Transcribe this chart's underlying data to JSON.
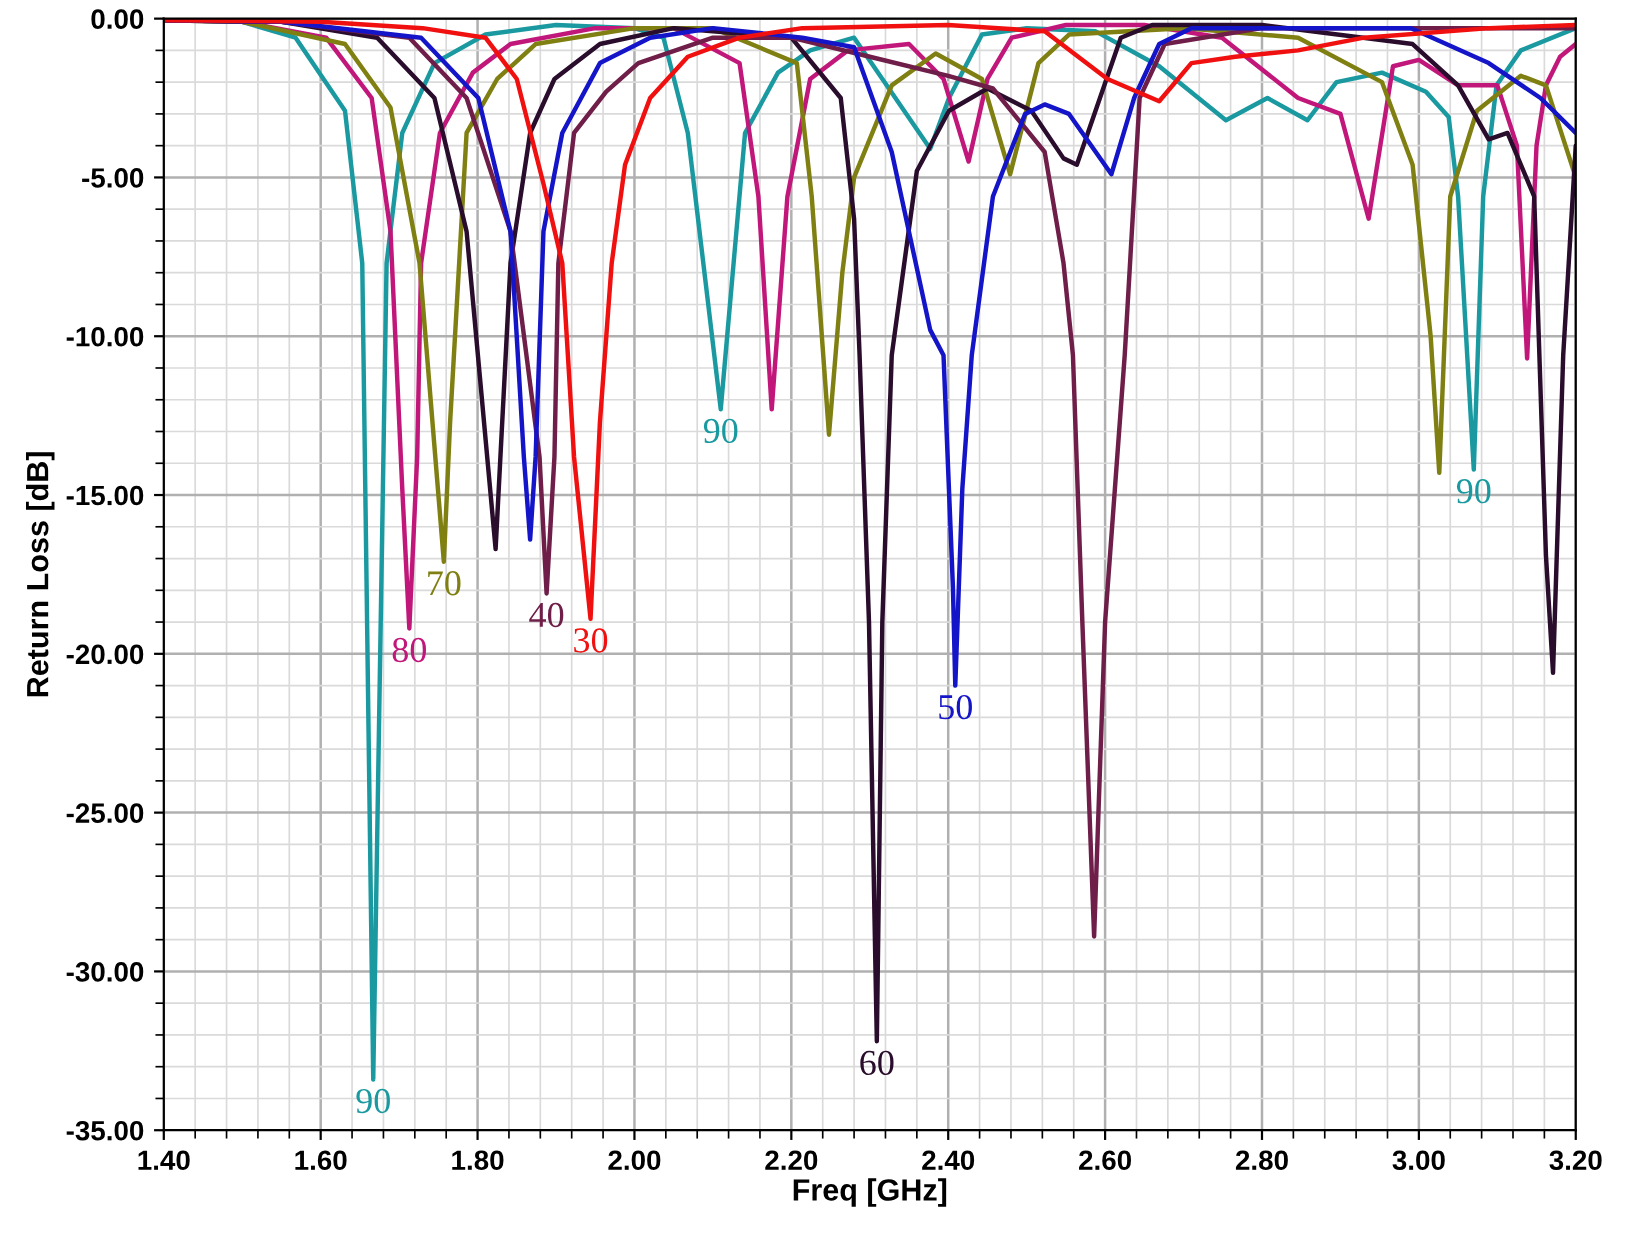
{
  "chart_data": {
    "type": "line",
    "xlabel": "Freq [GHz]",
    "ylabel": "Return Loss [dB]",
    "xlim": [
      1.4,
      3.2
    ],
    "ylim": [
      -35,
      0
    ],
    "xticks": [
      {
        "value": 1.4,
        "label": "1.40"
      },
      {
        "value": 1.6,
        "label": "1.60"
      },
      {
        "value": 1.8,
        "label": "1.80"
      },
      {
        "value": 2.0,
        "label": "2.00"
      },
      {
        "value": 2.2,
        "label": "2.20"
      },
      {
        "value": 2.4,
        "label": "2.40"
      },
      {
        "value": 2.6,
        "label": "2.60"
      },
      {
        "value": 2.8,
        "label": "2.80"
      },
      {
        "value": 3.0,
        "label": "3.00"
      },
      {
        "value": 3.2,
        "label": "3.20"
      }
    ],
    "yticks": [
      {
        "value": 0,
        "label": "0.00"
      },
      {
        "value": -5,
        "label": "-5.00"
      },
      {
        "value": -10,
        "label": "-10.00"
      },
      {
        "value": -15,
        "label": "-15.00"
      },
      {
        "value": -20,
        "label": "-20.00"
      },
      {
        "value": -25,
        "label": "-25.00"
      },
      {
        "value": -30,
        "label": "-30.00"
      },
      {
        "value": -35,
        "label": "-35.00"
      }
    ],
    "grid": true,
    "legend": false,
    "marker": "none",
    "line_style": "solid",
    "series": [
      {
        "color": "#1a9aa0",
        "x": [
          1.4,
          1.5,
          1.568,
          1.631,
          1.653,
          1.667,
          1.684,
          1.704,
          1.745,
          1.81,
          1.9,
          2.0,
          2.037,
          2.068,
          2.11,
          2.141,
          2.183,
          2.224,
          2.28,
          2.377,
          2.401,
          2.443,
          2.5,
          2.588,
          2.669,
          2.754,
          2.807,
          2.858,
          2.895,
          2.953,
          3.009,
          3.038,
          3.05,
          3.07,
          3.082,
          3.099,
          3.13,
          3.2
        ],
        "values": [
          -0.05,
          -0.1,
          -0.6,
          -2.9,
          -7.7,
          -33.4,
          -7.7,
          -3.6,
          -1.4,
          -0.5,
          -0.2,
          -0.3,
          -0.6,
          -3.6,
          -12.3,
          -3.6,
          -1.7,
          -1.0,
          -0.6,
          -4.1,
          -2.5,
          -0.5,
          -0.3,
          -0.4,
          -1.5,
          -3.2,
          -2.5,
          -3.2,
          -2.0,
          -1.7,
          -2.3,
          -3.1,
          -5.6,
          -14.2,
          -5.6,
          -2.1,
          -1.0,
          -0.3
        ]
      },
      {
        "color": "#c2177a",
        "x": [
          1.4,
          1.5,
          1.607,
          1.665,
          1.689,
          1.704,
          1.713,
          1.723,
          1.728,
          1.752,
          1.794,
          1.842,
          1.95,
          2.05,
          2.134,
          2.158,
          2.175,
          2.195,
          2.224,
          2.272,
          2.35,
          2.394,
          2.426,
          2.45,
          2.481,
          2.55,
          2.65,
          2.749,
          2.846,
          2.9,
          2.936,
          2.967,
          3.0,
          3.05,
          3.1,
          3.125,
          3.138,
          3.15,
          3.162,
          3.18,
          3.2
        ],
        "values": [
          -0.05,
          -0.1,
          -0.6,
          -2.5,
          -6.7,
          -14.8,
          -19.2,
          -13.8,
          -7.7,
          -3.6,
          -1.7,
          -0.8,
          -0.3,
          -0.3,
          -1.4,
          -5.6,
          -12.3,
          -5.6,
          -1.9,
          -1.0,
          -0.8,
          -1.9,
          -4.5,
          -1.9,
          -0.6,
          -0.2,
          -0.2,
          -0.6,
          -2.5,
          -3.0,
          -6.3,
          -1.5,
          -1.3,
          -2.1,
          -2.1,
          -4.0,
          -10.7,
          -4.0,
          -2.1,
          -1.2,
          -0.8
        ]
      },
      {
        "color": "#7f7f12",
        "x": [
          1.4,
          1.5,
          1.631,
          1.689,
          1.726,
          1.757,
          1.765,
          1.786,
          1.825,
          1.874,
          2.0,
          2.1,
          2.207,
          2.226,
          2.248,
          2.265,
          2.28,
          2.328,
          2.384,
          2.443,
          2.479,
          2.515,
          2.554,
          2.7,
          2.846,
          2.953,
          2.992,
          3.015,
          3.026,
          3.04,
          3.074,
          3.13,
          3.162,
          3.2
        ],
        "values": [
          -0.05,
          -0.1,
          -0.8,
          -2.8,
          -7.7,
          -17.1,
          -12.7,
          -3.6,
          -1.9,
          -0.8,
          -0.3,
          -0.3,
          -1.4,
          -5.6,
          -13.1,
          -8.0,
          -5.0,
          -2.1,
          -1.1,
          -1.9,
          -4.9,
          -1.4,
          -0.5,
          -0.3,
          -0.6,
          -2.0,
          -4.6,
          -10.0,
          -14.3,
          -5.6,
          -2.9,
          -1.8,
          -2.1,
          -5.0
        ]
      },
      {
        "color": "#2a0c2c",
        "x": [
          1.4,
          1.55,
          1.672,
          1.745,
          1.786,
          1.823,
          1.842,
          1.867,
          1.898,
          1.956,
          2.05,
          2.2,
          2.263,
          2.28,
          2.287,
          2.299,
          2.309,
          2.316,
          2.328,
          2.36,
          2.401,
          2.45,
          2.506,
          2.547,
          2.564,
          2.62,
          2.66,
          2.8,
          2.992,
          3.05,
          3.089,
          3.113,
          3.147,
          3.162,
          3.171,
          3.184,
          3.2
        ],
        "values": [
          -0.05,
          -0.1,
          -0.6,
          -2.5,
          -6.7,
          -16.7,
          -7.7,
          -3.6,
          -1.9,
          -0.8,
          -0.3,
          -0.6,
          -2.5,
          -6.3,
          -10.6,
          -19.0,
          -32.2,
          -19.0,
          -10.6,
          -4.8,
          -2.9,
          -2.2,
          -2.9,
          -4.4,
          -4.6,
          -0.6,
          -0.2,
          -0.2,
          -0.8,
          -2.1,
          -3.8,
          -3.6,
          -5.6,
          -16.9,
          -20.6,
          -10.6,
          -4.0
        ]
      },
      {
        "color": "#6e1e48",
        "x": [
          1.4,
          1.55,
          1.713,
          1.786,
          1.842,
          1.879,
          1.888,
          1.898,
          1.903,
          1.923,
          1.964,
          2.005,
          2.1,
          2.2,
          2.3,
          2.4,
          2.457,
          2.523,
          2.547,
          2.559,
          2.571,
          2.586,
          2.6,
          2.625,
          2.644,
          2.676,
          2.8,
          3.0,
          3.2
        ],
        "values": [
          -0.05,
          -0.1,
          -0.6,
          -2.5,
          -6.7,
          -13.8,
          -18.1,
          -13.8,
          -7.7,
          -3.6,
          -2.3,
          -1.4,
          -0.6,
          -0.6,
          -1.2,
          -1.8,
          -2.2,
          -4.2,
          -7.7,
          -10.6,
          -19.0,
          -28.9,
          -19.0,
          -10.6,
          -2.5,
          -0.8,
          -0.3,
          -0.3,
          -0.3
        ]
      },
      {
        "color": "#1414c8",
        "x": [
          1.4,
          1.55,
          1.728,
          1.801,
          1.842,
          1.859,
          1.867,
          1.874,
          1.884,
          1.908,
          1.956,
          2.02,
          2.1,
          2.214,
          2.28,
          2.328,
          2.377,
          2.394,
          2.406,
          2.409,
          2.418,
          2.43,
          2.457,
          2.498,
          2.523,
          2.554,
          2.608,
          2.637,
          2.669,
          2.71,
          2.99,
          3.089,
          3.155,
          3.2
        ],
        "values": [
          -0.05,
          -0.1,
          -0.6,
          -2.5,
          -6.7,
          -13.8,
          -16.4,
          -13.8,
          -6.7,
          -3.6,
          -1.4,
          -0.6,
          -0.3,
          -0.6,
          -0.9,
          -4.2,
          -9.8,
          -10.6,
          -17.9,
          -21.0,
          -14.8,
          -10.6,
          -5.6,
          -3.0,
          -2.7,
          -3.0,
          -4.9,
          -2.5,
          -0.8,
          -0.3,
          -0.3,
          -1.4,
          -2.5,
          -3.6
        ]
      },
      {
        "color": "#f01010",
        "x": [
          1.4,
          1.6,
          1.73,
          1.81,
          1.85,
          1.884,
          1.908,
          1.923,
          1.944,
          1.956,
          1.971,
          1.988,
          2.02,
          2.068,
          2.134,
          2.214,
          2.4,
          2.523,
          2.603,
          2.669,
          2.71,
          2.766,
          2.846,
          2.93,
          3.09,
          3.2
        ],
        "values": [
          -0.05,
          -0.1,
          -0.3,
          -0.6,
          -1.9,
          -5.2,
          -7.7,
          -13.8,
          -18.9,
          -12.7,
          -7.7,
          -4.6,
          -2.5,
          -1.2,
          -0.6,
          -0.3,
          -0.2,
          -0.4,
          -1.9,
          -2.6,
          -1.4,
          -1.2,
          -1.0,
          -0.6,
          -0.3,
          -0.2
        ]
      }
    ],
    "annotations": [
      {
        "text": "90",
        "x": 1.667,
        "y": -33.4
      },
      {
        "text": "80",
        "x": 1.713,
        "y": -19.2
      },
      {
        "text": "70",
        "x": 1.757,
        "y": -17.1
      },
      {
        "text": "40",
        "x": 1.888,
        "y": -18.1
      },
      {
        "text": "30",
        "x": 1.944,
        "y": -18.9
      },
      {
        "text": "90",
        "x": 2.11,
        "y": -12.3
      },
      {
        "text": "60",
        "x": 2.309,
        "y": -32.2
      },
      {
        "text": "50",
        "x": 2.409,
        "y": -21.0
      },
      {
        "text": "90",
        "x": 3.07,
        "y": -14.2
      }
    ]
  }
}
